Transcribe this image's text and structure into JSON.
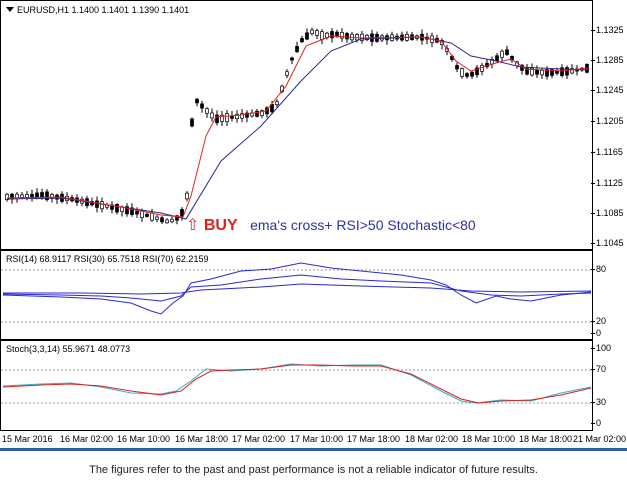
{
  "main": {
    "symbol_label": "EURUSD,H1  1.1400 1.1401 1.1390 1.1401",
    "price_ticks": [
      "1.1325",
      "1.1285",
      "1.1245",
      "1.1205",
      "1.1165",
      "1.1125",
      "1.1085",
      "1.1045"
    ],
    "annotation": {
      "arrow": "⇧",
      "word": "BUY",
      "text": "ema's cross+ RSI>50 Stochastic<80"
    }
  },
  "rsi": {
    "label": "RSI(14) 68.9117  RSI(30) 65.7518  RSI(70) 62.2159",
    "ticks": [
      "80",
      "20",
      "0"
    ]
  },
  "stoch": {
    "label": "Stoch(3,3,14) 55.9671 48.0773",
    "ticks": [
      "100",
      "70",
      "30",
      "0"
    ]
  },
  "time_labels": [
    "15 Mar 2016",
    "16 Mar 02:00",
    "16 Mar 10:00",
    "16 Mar 18:00",
    "17 Mar 02:00",
    "17 Mar 10:00",
    "17 Mar 18:00",
    "18 Mar 02:00",
    "18 Mar 10:00",
    "18 Mar 18:00",
    "21 Mar 02:00"
  ],
  "disclaimer": "The figures refer to the past and past performance is not a reliable indicator of future results.",
  "colors": {
    "bull": "#ffffff",
    "bear": "#000000",
    "ema_fast": "#e02020",
    "ema_slow": "#2a2a90",
    "rsi": "#2a2ad0",
    "stoch_main": "#30b0c0",
    "stoch_signal": "#e02020",
    "accent": "#2b5f9e"
  }
}
